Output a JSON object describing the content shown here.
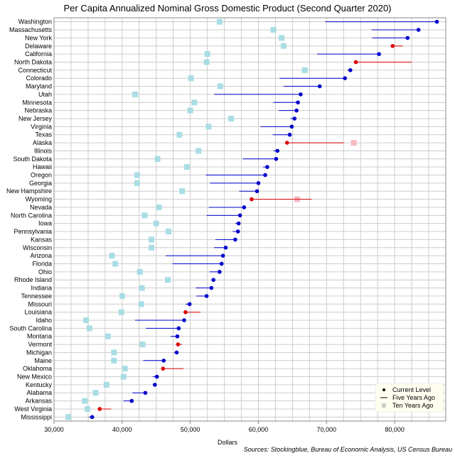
{
  "chart_data": {
    "type": "dot-range",
    "title": "Per Capita Annualized Nominal Gross Domestic Product (Second Quarter 2020)",
    "xlabel": "Dollars",
    "source": "Sources: Stockingblue, Bureau of Economic Analysis, US Census Bureau",
    "xlim": [
      30000,
      87500
    ],
    "xticks": [
      30000,
      40000,
      50000,
      60000,
      70000,
      80000
    ],
    "xtick_labels": [
      "30,000",
      "40,000",
      "50,000",
      "60,000",
      "70,000",
      "80,000"
    ],
    "grid": true,
    "legend_position": "bottom-right",
    "legend": [
      "Current Level",
      "Five Years Ago",
      "Ten Years Ago"
    ],
    "colors": {
      "increase": "#0000cc",
      "decrease": "#dd0000",
      "ten_years": "#a8dde4",
      "ten_years_decrease": "#f7b8c0",
      "grid": "#cccccc",
      "axis": "#888888"
    },
    "categories": [
      "Washington",
      "Massachusetts",
      "New York",
      "Delaware",
      "California",
      "North Dakota",
      "Connecticut",
      "Colorado",
      "Maryland",
      "Utah",
      "Minnesota",
      "Nebraska",
      "New Jersey",
      "Virginia",
      "Texas",
      "Alaska",
      "Illinois",
      "South Dakota",
      "Hawaii",
      "Oregon",
      "Georgia",
      "New Hampshire",
      "Wyoming",
      "Nevada",
      "North Carolina",
      "Iowa",
      "Pennsylvania",
      "Kansas",
      "Wisconsin",
      "Arizona",
      "Florida",
      "Ohio",
      "Rhode Island",
      "Indiana",
      "Tennessee",
      "Missouri",
      "Louisiana",
      "Idaho",
      "South Carolina",
      "Montana",
      "Vermont",
      "Michigan",
      "Maine",
      "Oklahoma",
      "New Mexico",
      "Kentucky",
      "Alabama",
      "Arkansas",
      "West Virginia",
      "Mississippi"
    ],
    "series": [
      {
        "name": "Current Level",
        "values": [
          86200,
          83500,
          81900,
          79700,
          77700,
          74300,
          73500,
          72700,
          69000,
          66200,
          65800,
          65600,
          65300,
          64900,
          64600,
          64200,
          62800,
          62600,
          61300,
          61000,
          60000,
          59800,
          59000,
          57900,
          57300,
          57100,
          57000,
          56600,
          55200,
          54800,
          54600,
          54300,
          53400,
          53100,
          52400,
          49900,
          49300,
          49100,
          48300,
          48100,
          48200,
          48000,
          46100,
          46000,
          45100,
          44800,
          43400,
          41400,
          36700,
          35600
        ]
      },
      {
        "name": "Five Years Ago",
        "values": [
          69800,
          76600,
          76700,
          81200,
          68600,
          82500,
          73100,
          63100,
          63700,
          53500,
          62200,
          63000,
          64700,
          60300,
          62100,
          72500,
          62200,
          57700,
          60700,
          52300,
          52900,
          57200,
          67800,
          52700,
          52400,
          56600,
          56200,
          53700,
          53500,
          46400,
          47400,
          52800,
          53100,
          50800,
          50900,
          49300,
          51500,
          41900,
          43500,
          47100,
          48800,
          47600,
          43100,
          49000,
          44500,
          44700,
          41500,
          40200,
          38400,
          35100
        ]
      },
      {
        "name": "Ten Years Ago",
        "values": [
          54300,
          62200,
          63400,
          63700,
          52500,
          52400,
          66800,
          50100,
          54400,
          41900,
          50600,
          50000,
          56000,
          52700,
          48400,
          74000,
          51200,
          45200,
          49500,
          42200,
          42200,
          48800,
          65700,
          45400,
          43300,
          45000,
          46800,
          44300,
          44300,
          38500,
          39000,
          42600,
          46700,
          42900,
          40000,
          42800,
          39900,
          34700,
          35200,
          37900,
          43000,
          38800,
          38800,
          40400,
          40200,
          37700,
          36100,
          34500,
          34900,
          32100
        ]
      }
    ]
  }
}
